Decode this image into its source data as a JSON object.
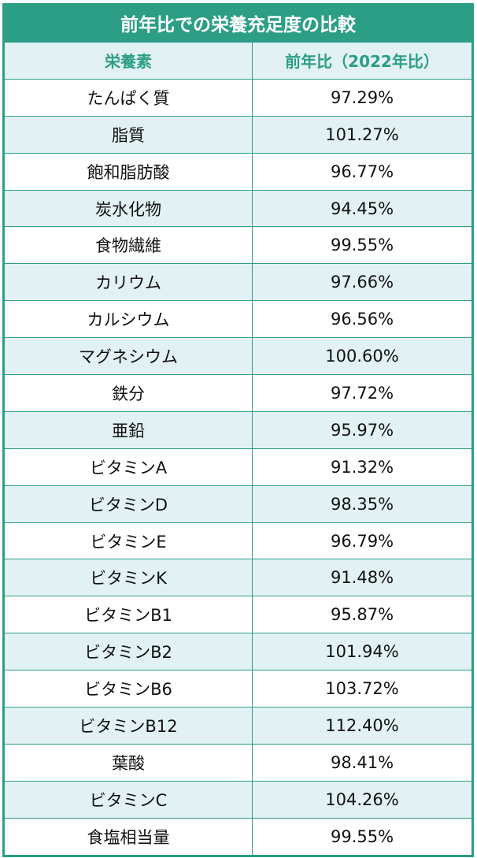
{
  "table": {
    "title": "前年比での栄養充足度の比較",
    "headers": [
      "栄養素",
      "前年比（2022年比）"
    ],
    "rows": [
      [
        "たんぱく質",
        "97.29%"
      ],
      [
        "脂質",
        "101.27%"
      ],
      [
        "飽和脂肪酸",
        "96.77%"
      ],
      [
        "炭水化物",
        "94.45%"
      ],
      [
        "食物繊維",
        "99.55%"
      ],
      [
        "カリウム",
        "97.66%"
      ],
      [
        "カルシウム",
        "96.56%"
      ],
      [
        "マグネシウム",
        "100.60%"
      ],
      [
        "鉄分",
        "97.72%"
      ],
      [
        "亜鉛",
        "95.97%"
      ],
      [
        "ビタミンA",
        "91.32%"
      ],
      [
        "ビタミンD",
        "98.35%"
      ],
      [
        "ビタミンE",
        "96.79%"
      ],
      [
        "ビタミンK",
        "91.48%"
      ],
      [
        "ビタミンB1",
        "95.87%"
      ],
      [
        "ビタミンB2",
        "101.94%"
      ],
      [
        "ビタミンB6",
        "103.72%"
      ],
      [
        "ビタミンB12",
        "112.40%"
      ],
      [
        "葉酸",
        "98.41%"
      ],
      [
        "ビタミンC",
        "104.26%"
      ],
      [
        "食塩相当量",
        "99.55%"
      ]
    ]
  },
  "colors": {
    "accent": "#2c9e86",
    "stripe": "#e2f1f4",
    "text": "#111111"
  }
}
